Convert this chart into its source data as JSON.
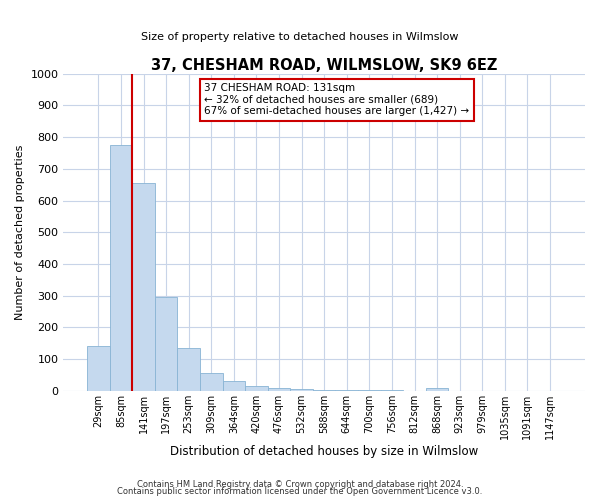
{
  "title": "37, CHESHAM ROAD, WILMSLOW, SK9 6EZ",
  "subtitle": "Size of property relative to detached houses in Wilmslow",
  "xlabel": "Distribution of detached houses by size in Wilmslow",
  "ylabel": "Number of detached properties",
  "bar_heights": [
    140,
    775,
    655,
    295,
    135,
    57,
    32,
    15,
    8,
    5,
    3,
    2,
    1,
    1,
    0,
    8,
    0,
    0,
    0,
    0,
    0
  ],
  "tick_labels": [
    "29sqm",
    "85sqm",
    "141sqm",
    "197sqm",
    "253sqm",
    "309sqm",
    "364sqm",
    "420sqm",
    "476sqm",
    "532sqm",
    "588sqm",
    "644sqm",
    "700sqm",
    "756sqm",
    "812sqm",
    "868sqm",
    "923sqm",
    "979sqm",
    "1035sqm",
    "1091sqm",
    "1147sqm"
  ],
  "bar_color": "#c5d9ee",
  "bar_edge_color": "#88b4d4",
  "property_line_color": "#cc0000",
  "property_line_x": 1.5,
  "annotation_title": "37 CHESHAM ROAD: 131sqm",
  "annotation_line1": "← 32% of detached houses are smaller (689)",
  "annotation_line2": "67% of semi-detached houses are larger (1,427) →",
  "annotation_box_color": "#cc0000",
  "ylim": [
    0,
    1000
  ],
  "yticks": [
    0,
    100,
    200,
    300,
    400,
    500,
    600,
    700,
    800,
    900,
    1000
  ],
  "footer1": "Contains HM Land Registry data © Crown copyright and database right 2024.",
  "footer2": "Contains public sector information licensed under the Open Government Licence v3.0.",
  "bg_color": "#ffffff",
  "grid_color": "#c8d4e8"
}
